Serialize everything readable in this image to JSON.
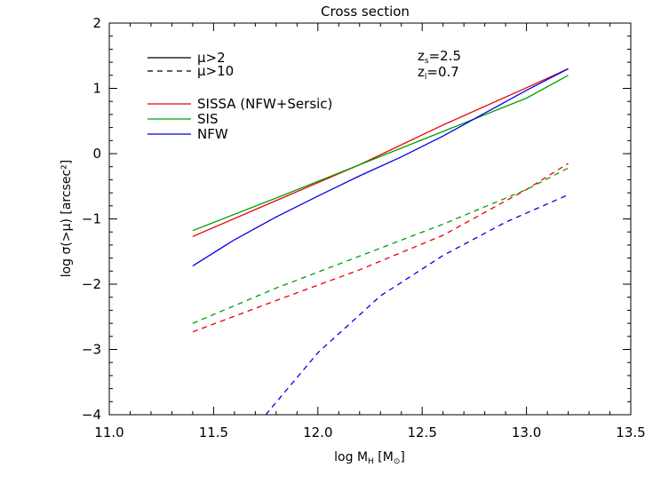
{
  "chart_data": {
    "type": "line",
    "title": "Cross section",
    "xlabel": "log M_H [M_⊙]",
    "ylabel": "log σ(>μ) [arcsec²]",
    "xlim": [
      11.0,
      13.5
    ],
    "ylim": [
      -4.0,
      2.0
    ],
    "xticks": [
      "11.0",
      "11.5",
      "12.0",
      "12.5",
      "13.0",
      "13.5"
    ],
    "yticks": [
      "−4",
      "−3",
      "−2",
      "−1",
      "0",
      "1",
      "2"
    ],
    "colors": {
      "SISSA": "#e8000b",
      "SIS": "#00a000",
      "NFW": "#0000e8"
    },
    "legend_styles": [
      {
        "label": "μ>2",
        "dash": "solid"
      },
      {
        "label": "μ>10",
        "dash": "dashed"
      }
    ],
    "legend_models": [
      {
        "label": "SISSA (NFW+Sersic)",
        "key": "SISSA"
      },
      {
        "label": "SIS",
        "key": "SIS"
      },
      {
        "label": "NFW",
        "key": "NFW"
      }
    ],
    "annotations": [
      "z_s=2.5",
      "z_l=0.7"
    ],
    "series": [
      {
        "model": "SISSA",
        "magnification": "μ>2",
        "dash": "solid",
        "x": [
          11.4,
          11.8,
          12.2,
          12.6,
          13.0,
          13.2
        ],
        "y": [
          -1.27,
          -0.72,
          -0.17,
          0.44,
          1.01,
          1.3
        ]
      },
      {
        "model": "SIS",
        "magnification": "μ>2",
        "dash": "solid",
        "x": [
          11.4,
          11.8,
          12.2,
          12.6,
          13.0,
          13.2
        ],
        "y": [
          -1.18,
          -0.68,
          -0.17,
          0.34,
          0.85,
          1.2
        ]
      },
      {
        "model": "NFW",
        "magnification": "μ>2",
        "dash": "solid",
        "x": [
          11.4,
          11.6,
          11.8,
          12.0,
          12.2,
          12.4,
          12.6,
          12.8,
          13.0,
          13.2
        ],
        "y": [
          -1.72,
          -1.32,
          -0.97,
          -0.65,
          -0.34,
          -0.05,
          0.27,
          0.62,
          0.97,
          1.3
        ]
      },
      {
        "model": "SISSA",
        "magnification": "μ>10",
        "dash": "dashed",
        "x": [
          11.4,
          11.8,
          12.2,
          12.6,
          13.0,
          13.2
        ],
        "y": [
          -2.73,
          -2.25,
          -1.78,
          -1.25,
          -0.55,
          -0.15
        ]
      },
      {
        "model": "SIS",
        "magnification": "μ>10",
        "dash": "dashed",
        "x": [
          11.4,
          11.8,
          12.2,
          12.6,
          13.0,
          13.2
        ],
        "y": [
          -2.6,
          -2.06,
          -1.57,
          -1.08,
          -0.55,
          -0.22
        ]
      },
      {
        "model": "NFW",
        "magnification": "μ>10",
        "dash": "dashed",
        "x": [
          11.75,
          12.0,
          12.3,
          12.6,
          12.9,
          13.2
        ],
        "y": [
          -4.0,
          -3.05,
          -2.18,
          -1.56,
          -1.05,
          -0.63
        ]
      }
    ]
  }
}
